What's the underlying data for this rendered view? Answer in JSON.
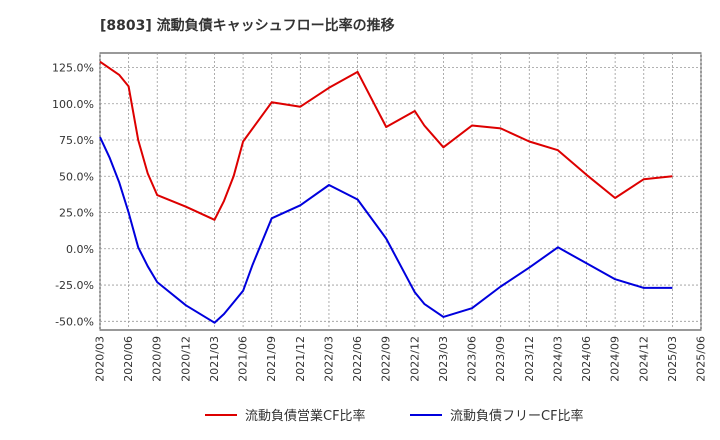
{
  "chart_data": {
    "type": "line",
    "title": "[8803]  流動負債キャッシュフロー比率の推移",
    "xlabel": "",
    "ylabel": "",
    "x_ticks": [
      "2020/03",
      "2020/06",
      "2020/09",
      "2020/12",
      "2021/03",
      "2021/06",
      "2021/09",
      "2021/12",
      "2022/03",
      "2022/06",
      "2022/09",
      "2022/12",
      "2023/03",
      "2023/06",
      "2023/09",
      "2023/12",
      "2024/03",
      "2024/06",
      "2024/09",
      "2024/12",
      "2025/03",
      "2025/06"
    ],
    "y_ticks": [
      "125.0%",
      "100.0%",
      "75.0%",
      "50.0%",
      "25.0%",
      "0.0%",
      "-25.0%",
      "-50.0%"
    ],
    "y_tick_values": [
      125,
      100,
      75,
      50,
      25,
      0,
      -25,
      -50
    ],
    "ylim": [
      -56,
      135
    ],
    "xlim": [
      "2020/03",
      "2025/06"
    ],
    "grid": true,
    "legend_position": "bottom",
    "series": [
      {
        "name": "流動負債営業CF比率",
        "color": "#dd0000",
        "points": [
          [
            "2020/03",
            129
          ],
          [
            "2020/05",
            120
          ],
          [
            "2020/06",
            112
          ],
          [
            "2020/07",
            75
          ],
          [
            "2020/08",
            52
          ],
          [
            "2020/09",
            37
          ],
          [
            "2020/12",
            29
          ],
          [
            "2021/03",
            20
          ],
          [
            "2021/04",
            33
          ],
          [
            "2021/05",
            50
          ],
          [
            "2021/06",
            74
          ],
          [
            "2021/09",
            101
          ],
          [
            "2021/12",
            98
          ],
          [
            "2022/03",
            111
          ],
          [
            "2022/06",
            122
          ],
          [
            "2022/09",
            84
          ],
          [
            "2022/12",
            95
          ],
          [
            "2023/01",
            85
          ],
          [
            "2023/03",
            70
          ],
          [
            "2023/06",
            85
          ],
          [
            "2023/09",
            83
          ],
          [
            "2023/12",
            74
          ],
          [
            "2024/03",
            68
          ],
          [
            "2024/06",
            51
          ],
          [
            "2024/09",
            35
          ],
          [
            "2024/12",
            48
          ],
          [
            "2025/03",
            50
          ]
        ]
      },
      {
        "name": "流動負債フリーCF比率",
        "color": "#0000dd",
        "points": [
          [
            "2020/03",
            77
          ],
          [
            "2020/04",
            63
          ],
          [
            "2020/05",
            46
          ],
          [
            "2020/06",
            25
          ],
          [
            "2020/07",
            1
          ],
          [
            "2020/08",
            -12
          ],
          [
            "2020/09",
            -23
          ],
          [
            "2020/12",
            -39
          ],
          [
            "2021/03",
            -51
          ],
          [
            "2021/04",
            -45
          ],
          [
            "2021/05",
            -37
          ],
          [
            "2021/06",
            -29
          ],
          [
            "2021/07",
            -11
          ],
          [
            "2021/09",
            21
          ],
          [
            "2021/12",
            30
          ],
          [
            "2022/03",
            44
          ],
          [
            "2022/06",
            34
          ],
          [
            "2022/09",
            7
          ],
          [
            "2022/12",
            -30
          ],
          [
            "2023/01",
            -38
          ],
          [
            "2023/03",
            -47
          ],
          [
            "2023/06",
            -41
          ],
          [
            "2023/09",
            -26
          ],
          [
            "2023/12",
            -13
          ],
          [
            "2024/03",
            1
          ],
          [
            "2024/06",
            -10
          ],
          [
            "2024/09",
            -21
          ],
          [
            "2024/12",
            -27
          ],
          [
            "2025/03",
            -27
          ]
        ]
      }
    ]
  }
}
